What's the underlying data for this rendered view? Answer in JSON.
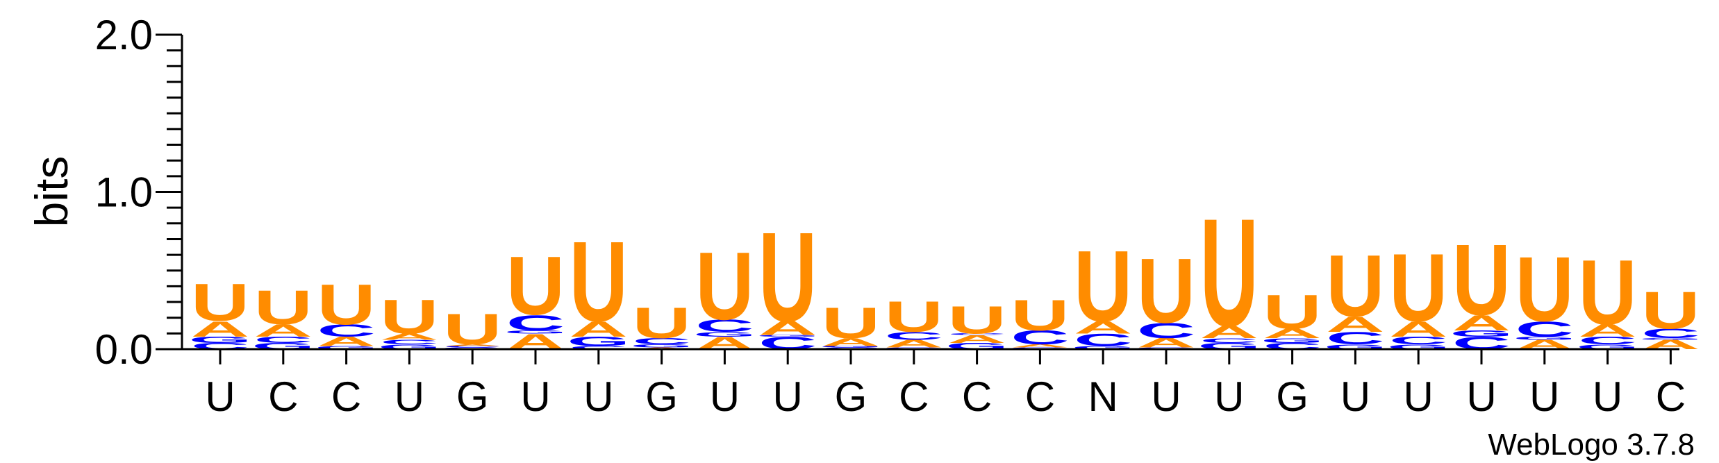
{
  "chart_data": {
    "type": "sequence-logo",
    "title": "",
    "ylabel": "bits",
    "xlabel": "",
    "ylim": [
      0,
      2.0
    ],
    "y_ticks": [
      {
        "value": 0.0,
        "label": "0.0"
      },
      {
        "value": 1.0,
        "label": "1.0"
      },
      {
        "value": 2.0,
        "label": "2.0"
      }
    ],
    "consensus": [
      "U",
      "C",
      "C",
      "U",
      "G",
      "U",
      "U",
      "G",
      "U",
      "U",
      "G",
      "C",
      "C",
      "C",
      "N",
      "U",
      "U",
      "G",
      "U",
      "U",
      "U",
      "U",
      "U",
      "C"
    ],
    "colors": {
      "U": "#FF8C00",
      "A": "#FF8C00",
      "C": "#0000FF",
      "G": "#0000FF"
    },
    "positions": [
      [
        {
          "letter": "C",
          "bits": 0.04
        },
        {
          "letter": "G",
          "bits": 0.04
        },
        {
          "letter": "A",
          "bits": 0.1
        },
        {
          "letter": "U",
          "bits": 0.24
        }
      ],
      [
        {
          "letter": "G",
          "bits": 0.04
        },
        {
          "letter": "C",
          "bits": 0.04
        },
        {
          "letter": "A",
          "bits": 0.08
        },
        {
          "letter": "U",
          "bits": 0.22
        }
      ],
      [
        {
          "letter": "G",
          "bits": 0.02
        },
        {
          "letter": "A",
          "bits": 0.06
        },
        {
          "letter": "C",
          "bits": 0.08
        },
        {
          "letter": "U",
          "bits": 0.26
        }
      ],
      [
        {
          "letter": "G",
          "bits": 0.03
        },
        {
          "letter": "C",
          "bits": 0.03
        },
        {
          "letter": "A",
          "bits": 0.04
        },
        {
          "letter": "U",
          "bits": 0.22
        }
      ],
      [
        {
          "letter": "G",
          "bits": 0.01
        },
        {
          "letter": "C",
          "bits": 0.01
        },
        {
          "letter": "A",
          "bits": 0.01
        },
        {
          "letter": "U",
          "bits": 0.2
        }
      ],
      [
        {
          "letter": "A",
          "bits": 0.1
        },
        {
          "letter": "G",
          "bits": 0.02
        },
        {
          "letter": "C",
          "bits": 0.1
        },
        {
          "letter": "U",
          "bits": 0.38
        }
      ],
      [
        {
          "letter": "C",
          "bits": 0.02
        },
        {
          "letter": "G",
          "bits": 0.06
        },
        {
          "letter": "A",
          "bits": 0.1
        },
        {
          "letter": "U",
          "bits": 0.52
        }
      ],
      [
        {
          "letter": "A",
          "bits": 0.01
        },
        {
          "letter": "G",
          "bits": 0.02
        },
        {
          "letter": "C",
          "bits": 0.04
        },
        {
          "letter": "U",
          "bits": 0.2
        }
      ],
      [
        {
          "letter": "A",
          "bits": 0.08
        },
        {
          "letter": "G",
          "bits": 0.03
        },
        {
          "letter": "C",
          "bits": 0.08
        },
        {
          "letter": "U",
          "bits": 0.44
        }
      ],
      [
        {
          "letter": "C",
          "bits": 0.08
        },
        {
          "letter": "G",
          "bits": 0.01
        },
        {
          "letter": "A",
          "bits": 0.09
        },
        {
          "letter": "U",
          "bits": 0.58
        }
      ],
      [
        {
          "letter": "C",
          "bits": 0.01
        },
        {
          "letter": "G",
          "bits": 0.01
        },
        {
          "letter": "A",
          "bits": 0.05
        },
        {
          "letter": "U",
          "bits": 0.2
        }
      ],
      [
        {
          "letter": "G",
          "bits": 0.01
        },
        {
          "letter": "A",
          "bits": 0.05
        },
        {
          "letter": "C",
          "bits": 0.05
        },
        {
          "letter": "U",
          "bits": 0.2
        }
      ],
      [
        {
          "letter": "G",
          "bits": 0.04
        },
        {
          "letter": "A",
          "bits": 0.05
        },
        {
          "letter": "C",
          "bits": 0.01
        },
        {
          "letter": "U",
          "bits": 0.18
        }
      ],
      [
        {
          "letter": "G",
          "bits": 0.01
        },
        {
          "letter": "A",
          "bits": 0.02
        },
        {
          "letter": "C",
          "bits": 0.09
        },
        {
          "letter": "U",
          "bits": 0.2
        }
      ],
      [
        {
          "letter": "G",
          "bits": 0.02
        },
        {
          "letter": "C",
          "bits": 0.08
        },
        {
          "letter": "A",
          "bits": 0.08
        },
        {
          "letter": "U",
          "bits": 0.46
        }
      ],
      [
        {
          "letter": "G",
          "bits": 0.01
        },
        {
          "letter": "A",
          "bits": 0.06
        },
        {
          "letter": "C",
          "bits": 0.1
        },
        {
          "letter": "U",
          "bits": 0.42
        }
      ],
      [
        {
          "letter": "G",
          "bits": 0.04
        },
        {
          "letter": "C",
          "bits": 0.03
        },
        {
          "letter": "A",
          "bits": 0.08
        },
        {
          "letter": "U",
          "bits": 0.7
        }
      ],
      [
        {
          "letter": "C",
          "bits": 0.04
        },
        {
          "letter": "G",
          "bits": 0.03
        },
        {
          "letter": "A",
          "bits": 0.06
        },
        {
          "letter": "U",
          "bits": 0.22
        }
      ],
      [
        {
          "letter": "G",
          "bits": 0.03
        },
        {
          "letter": "C",
          "bits": 0.08
        },
        {
          "letter": "A",
          "bits": 0.1
        },
        {
          "letter": "U",
          "bits": 0.4
        }
      ],
      [
        {
          "letter": "G",
          "bits": 0.03
        },
        {
          "letter": "C",
          "bits": 0.05
        },
        {
          "letter": "A",
          "bits": 0.1
        },
        {
          "letter": "U",
          "bits": 0.44
        }
      ],
      [
        {
          "letter": "C",
          "bits": 0.08
        },
        {
          "letter": "G",
          "bits": 0.04
        },
        {
          "letter": "A",
          "bits": 0.1
        },
        {
          "letter": "U",
          "bits": 0.46
        }
      ],
      [
        {
          "letter": "A",
          "bits": 0.06
        },
        {
          "letter": "G",
          "bits": 0.02
        },
        {
          "letter": "C",
          "bits": 0.1
        },
        {
          "letter": "U",
          "bits": 0.42
        }
      ],
      [
        {
          "letter": "G",
          "bits": 0.03
        },
        {
          "letter": "C",
          "bits": 0.05
        },
        {
          "letter": "A",
          "bits": 0.08
        },
        {
          "letter": "U",
          "bits": 0.42
        }
      ],
      [
        {
          "letter": "A",
          "bits": 0.06
        },
        {
          "letter": "G",
          "bits": 0.01
        },
        {
          "letter": "C",
          "bits": 0.06
        },
        {
          "letter": "U",
          "bits": 0.24
        }
      ]
    ]
  },
  "credit": "WebLogo 3.7.8"
}
